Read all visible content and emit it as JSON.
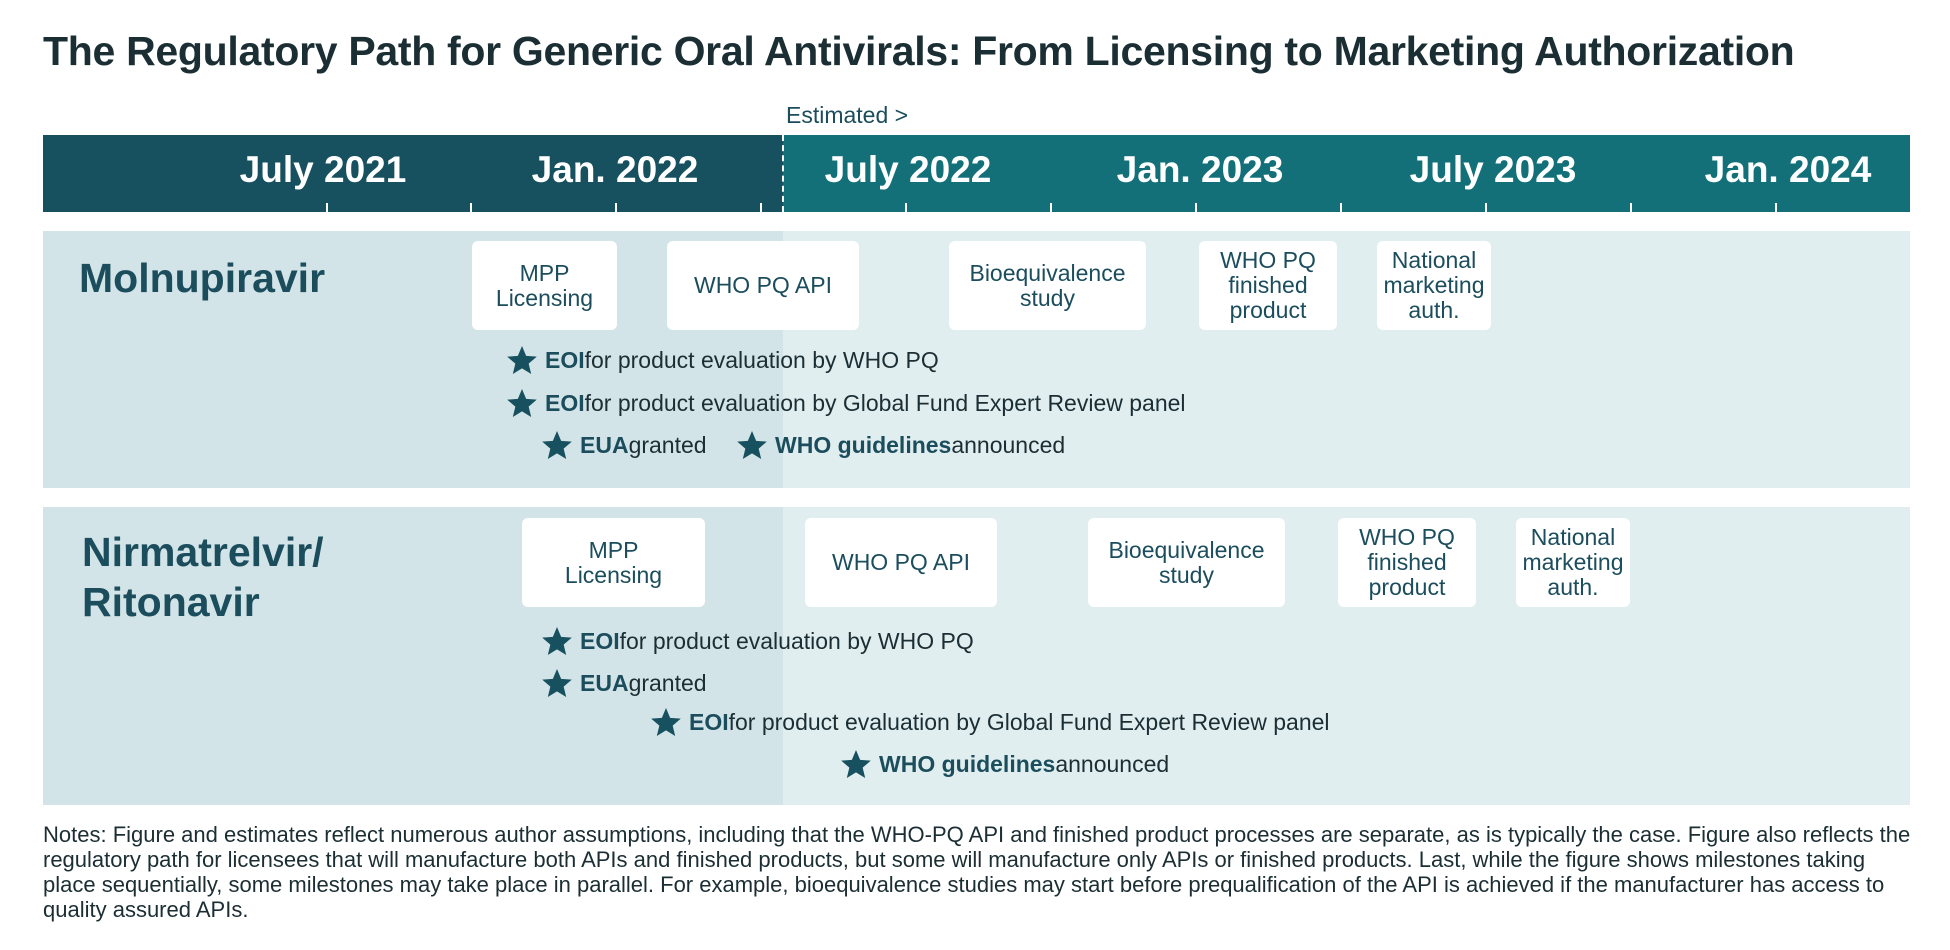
{
  "title": "The Regulatory Path for Generic Oral Antivirals: From Licensing to Marketing Authorization",
  "estimated_label": "Estimated >",
  "timeline_labels": [
    "July 2021",
    "Jan. 2022",
    "July 2022",
    "Jan. 2023",
    "July 2023",
    "Jan. 2024"
  ],
  "lanes": [
    {
      "title": "Molnupiravir",
      "milestones": [
        "MPP\nLicensing",
        "WHO PQ API",
        "Bioequivalence\nstudy",
        "WHO PQ\nfinished\nproduct",
        "National\nmarketing\nauth."
      ],
      "events": [
        {
          "bold": "EOI",
          "text": " for product evaluation by WHO PQ"
        },
        {
          "bold": "EOI",
          "text": " for product evaluation by Global Fund Expert Review panel"
        },
        {
          "bold": "EUA",
          "text": " granted"
        },
        {
          "bold": "WHO guidelines",
          "text": " announced"
        }
      ]
    },
    {
      "title": "Nirmatrelvir/\nRitonavir",
      "title_line1": "Nirmatrelvir/",
      "title_line2": "Ritonavir",
      "milestones": [
        "MPP\nLicensing",
        "WHO PQ API",
        "Bioequivalence\nstudy",
        "WHO PQ\nfinished\nproduct",
        "National\nmarketing\nauth."
      ],
      "events": [
        {
          "bold": "EOI",
          "text": " for product evaluation by WHO PQ"
        },
        {
          "bold": "EUA",
          "text": " granted"
        },
        {
          "bold": "EOI",
          "text": " for product evaluation by Global Fund Expert Review panel"
        },
        {
          "bold": "WHO guidelines",
          "text": " announced"
        }
      ]
    }
  ],
  "notes": "Notes: Figure and estimates reflect numerous author assumptions, including that the WHO-PQ API and finished product processes are separate, as is typically the case. Figure also reflects the regulatory path for licensees that will manufacture both APIs and finished products, but some will manufacture only APIs or finished products. Last, while the figure shows milestones taking place sequentially, some milestones may take place in parallel. For example, bioequivalence studies may start before prequalification of the API is achieved if the manufacturer has access to quality assured APIs.",
  "colors": {
    "band_estimated": "#137079",
    "band_past": "#17505f",
    "lane_past": "#d3e4e8",
    "lane_estimated": "#e1eef0",
    "text_accent": "#1b4d5c"
  }
}
